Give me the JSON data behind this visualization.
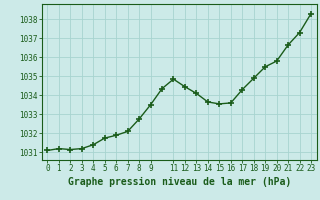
{
  "x": [
    0,
    1,
    2,
    3,
    4,
    5,
    6,
    7,
    8,
    9,
    10,
    11,
    12,
    13,
    14,
    15,
    16,
    17,
    18,
    19,
    20,
    21,
    22,
    23
  ],
  "y": [
    1031.1,
    1031.2,
    1031.15,
    1031.2,
    1031.4,
    1031.75,
    1031.9,
    1032.1,
    1032.75,
    1033.5,
    1034.35,
    1034.85,
    1034.45,
    1034.1,
    1033.65,
    1033.55,
    1033.6,
    1034.3,
    1034.9,
    1035.5,
    1035.8,
    1036.65,
    1037.3,
    1038.3
  ],
  "line_color": "#1a5c1a",
  "marker": "+",
  "marker_size": 4,
  "marker_linewidth": 1.2,
  "bg_color": "#cceae8",
  "grid_color": "#a8d4d0",
  "xlabel": "Graphe pression niveau de la mer (hPa)",
  "xlabel_color": "#1a5c1a",
  "tick_color": "#1a5c1a",
  "ylim": [
    1030.6,
    1038.8
  ],
  "yticks": [
    1031,
    1032,
    1033,
    1034,
    1035,
    1036,
    1037,
    1038
  ],
  "xticks": [
    0,
    1,
    2,
    3,
    4,
    5,
    6,
    7,
    8,
    9,
    11,
    12,
    13,
    14,
    15,
    16,
    17,
    18,
    19,
    20,
    21,
    22,
    23
  ],
  "xlim": [
    -0.5,
    23.5
  ],
  "tick_fontsize": 5.5,
  "xlabel_fontsize": 7.0,
  "linewidth": 1.0
}
